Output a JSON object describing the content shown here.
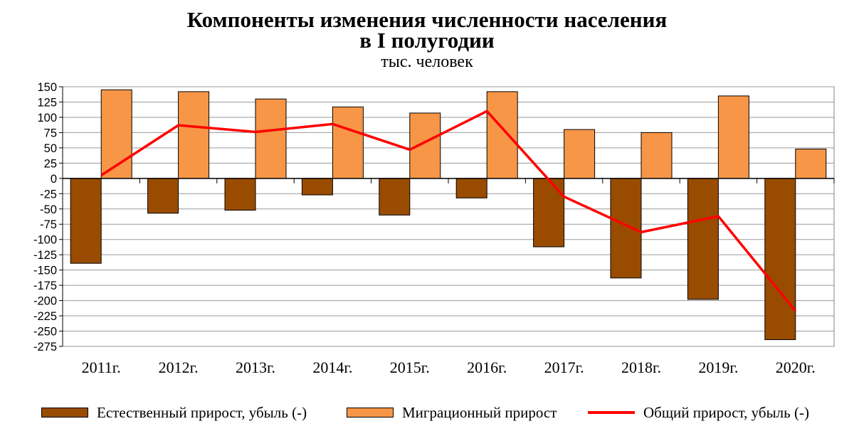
{
  "chart_data": {
    "type": "bar",
    "title_lines": [
      "Компоненты изменения численности населения",
      "в I полугодии"
    ],
    "subtitle": "тыс. человек",
    "categories": [
      "2011г.",
      "2012г.",
      "2013г.",
      "2014г.",
      "2015г.",
      "2016г.",
      "2017г.",
      "2018г.",
      "2019г.",
      "2020г."
    ],
    "series": [
      {
        "name": "Естественный прирост, убыль (-)",
        "type": "bar",
        "color": "#994C00",
        "values": [
          -139,
          -57,
          -52,
          -27,
          -60,
          -32,
          -112,
          -163,
          -198,
          -264
        ]
      },
      {
        "name": "Миграционный прирост",
        "type": "bar",
        "color": "#F79646",
        "values": [
          145,
          142,
          130,
          117,
          107,
          142,
          80,
          75,
          135,
          48
        ]
      },
      {
        "name": "Общий прирост, убыль (-)",
        "type": "line",
        "color": "#FF0000",
        "values": [
          5,
          87,
          76,
          89,
          47,
          110,
          -30,
          -88,
          -62,
          -217
        ]
      }
    ],
    "ylim": [
      -275,
      150
    ],
    "yticks": [
      150,
      125,
      100,
      75,
      50,
      25,
      0,
      -25,
      -50,
      -75,
      -100,
      -125,
      -150,
      -175,
      -200,
      -225,
      -250,
      -275
    ],
    "ytick_labels": [
      "150",
      "125",
      "100",
      "75",
      "50",
      "25",
      "0",
      "-25",
      "-50",
      "-75",
      "-100",
      "-125",
      "-150",
      "-175",
      "-200",
      "-225",
      "-250",
      "-275"
    ],
    "grid": true,
    "legend": "bottom"
  }
}
